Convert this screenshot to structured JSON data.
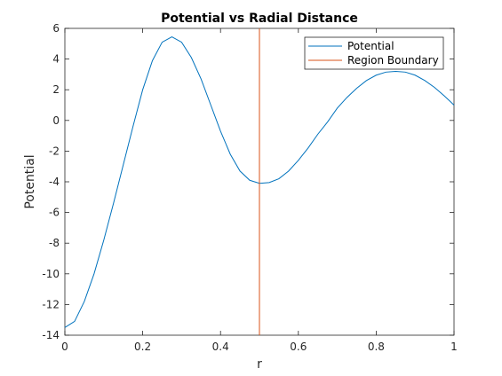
{
  "chart_data": {
    "type": "line",
    "title": "Potential vs Radial Distance",
    "xlabel": "r",
    "ylabel": "Potential",
    "xlim": [
      0,
      1
    ],
    "ylim": [
      -14,
      6
    ],
    "xticks": [
      0,
      0.2,
      0.4,
      0.6,
      0.8,
      1
    ],
    "xtick_labels": [
      "0",
      "0.2",
      "0.4",
      "0.6",
      "0.8",
      "1"
    ],
    "yticks": [
      -14,
      -12,
      -10,
      -8,
      -6,
      -4,
      -2,
      0,
      2,
      4,
      6
    ],
    "ytick_labels": [
      "-14",
      "-12",
      "-10",
      "-8",
      "-6",
      "-4",
      "-2",
      "0",
      "2",
      "4",
      "6"
    ],
    "grid": false,
    "legend_position": "top-right",
    "series": [
      {
        "name": "Potential",
        "color": "#0072BD",
        "x": [
          0,
          0.025,
          0.05,
          0.075,
          0.1,
          0.125,
          0.15,
          0.175,
          0.2,
          0.225,
          0.25,
          0.275,
          0.3,
          0.325,
          0.35,
          0.375,
          0.4,
          0.425,
          0.45,
          0.475,
          0.5,
          0.525,
          0.55,
          0.575,
          0.6,
          0.625,
          0.65,
          0.675,
          0.7,
          0.725,
          0.75,
          0.775,
          0.8,
          0.825,
          0.85,
          0.875,
          0.9,
          0.925,
          0.95,
          0.975,
          1
        ],
        "y": [
          -13.5,
          -13.1,
          -11.8,
          -10.0,
          -7.8,
          -5.4,
          -2.9,
          -0.4,
          2.0,
          3.9,
          5.1,
          5.45,
          5.1,
          4.1,
          2.7,
          1.0,
          -0.7,
          -2.2,
          -3.3,
          -3.9,
          -4.1,
          -4.05,
          -3.8,
          -3.3,
          -2.6,
          -1.8,
          -0.9,
          -0.1,
          0.8,
          1.5,
          2.1,
          2.6,
          2.95,
          3.15,
          3.2,
          3.15,
          2.95,
          2.6,
          2.15,
          1.6,
          1.0
        ]
      },
      {
        "name": "Region Boundary",
        "color": "#D95319",
        "x": [
          0.5,
          0.5
        ],
        "y": [
          -14,
          6
        ]
      }
    ]
  }
}
